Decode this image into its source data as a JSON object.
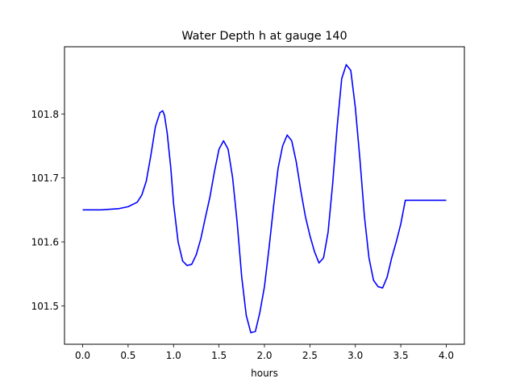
{
  "chart_data": {
    "type": "line",
    "title": "Water Depth h at gauge 140",
    "xlabel": "hours",
    "ylabel": "",
    "xlim": [
      -0.2,
      4.2
    ],
    "ylim": [
      101.44,
      101.905
    ],
    "xticks": [
      0.0,
      0.5,
      1.0,
      1.5,
      2.0,
      2.5,
      3.0,
      3.5,
      4.0
    ],
    "xtick_labels": [
      "0.0",
      "0.5",
      "1.0",
      "1.5",
      "2.0",
      "2.5",
      "3.0",
      "3.5",
      "4.0"
    ],
    "yticks": [
      101.5,
      101.6,
      101.7,
      101.8
    ],
    "ytick_labels": [
      "101.5",
      "101.6",
      "101.7",
      "101.8"
    ],
    "grid": false,
    "legend": "none",
    "series": [
      {
        "color": "#0000ff",
        "x": [
          0.0,
          0.2,
          0.4,
          0.5,
          0.6,
          0.65,
          0.7,
          0.75,
          0.8,
          0.85,
          0.88,
          0.9,
          0.93,
          0.97,
          1.0,
          1.05,
          1.1,
          1.15,
          1.2,
          1.25,
          1.3,
          1.35,
          1.4,
          1.45,
          1.5,
          1.55,
          1.6,
          1.65,
          1.7,
          1.75,
          1.8,
          1.85,
          1.9,
          1.95,
          2.0,
          2.05,
          2.1,
          2.15,
          2.2,
          2.25,
          2.3,
          2.35,
          2.4,
          2.45,
          2.5,
          2.55,
          2.6,
          2.65,
          2.7,
          2.75,
          2.8,
          2.85,
          2.9,
          2.95,
          3.0,
          3.05,
          3.1,
          3.15,
          3.2,
          3.25,
          3.3,
          3.35,
          3.4,
          3.45,
          3.5,
          3.55,
          3.6,
          3.65,
          3.7,
          3.75,
          3.8,
          3.85,
          3.9,
          3.95,
          4.0
        ],
        "y": [
          101.65,
          101.65,
          101.652,
          101.655,
          101.662,
          101.673,
          101.695,
          101.735,
          101.78,
          101.802,
          101.805,
          101.798,
          101.77,
          101.715,
          101.66,
          101.6,
          101.57,
          101.563,
          101.565,
          101.58,
          101.605,
          101.638,
          101.67,
          101.71,
          101.745,
          101.758,
          101.745,
          101.7,
          101.63,
          101.545,
          101.485,
          101.458,
          101.46,
          101.49,
          101.53,
          101.59,
          101.655,
          101.715,
          101.75,
          101.767,
          101.758,
          101.725,
          101.68,
          101.64,
          101.61,
          101.585,
          101.567,
          101.575,
          101.615,
          101.69,
          101.78,
          101.855,
          101.877,
          101.868,
          101.81,
          101.73,
          101.64,
          101.575,
          101.54,
          101.53,
          101.528,
          101.545,
          101.575,
          101.6,
          101.628,
          101.665,
          101.665,
          101.665,
          101.665,
          101.665,
          101.665,
          101.665,
          101.665,
          101.665,
          101.665
        ]
      }
    ]
  }
}
